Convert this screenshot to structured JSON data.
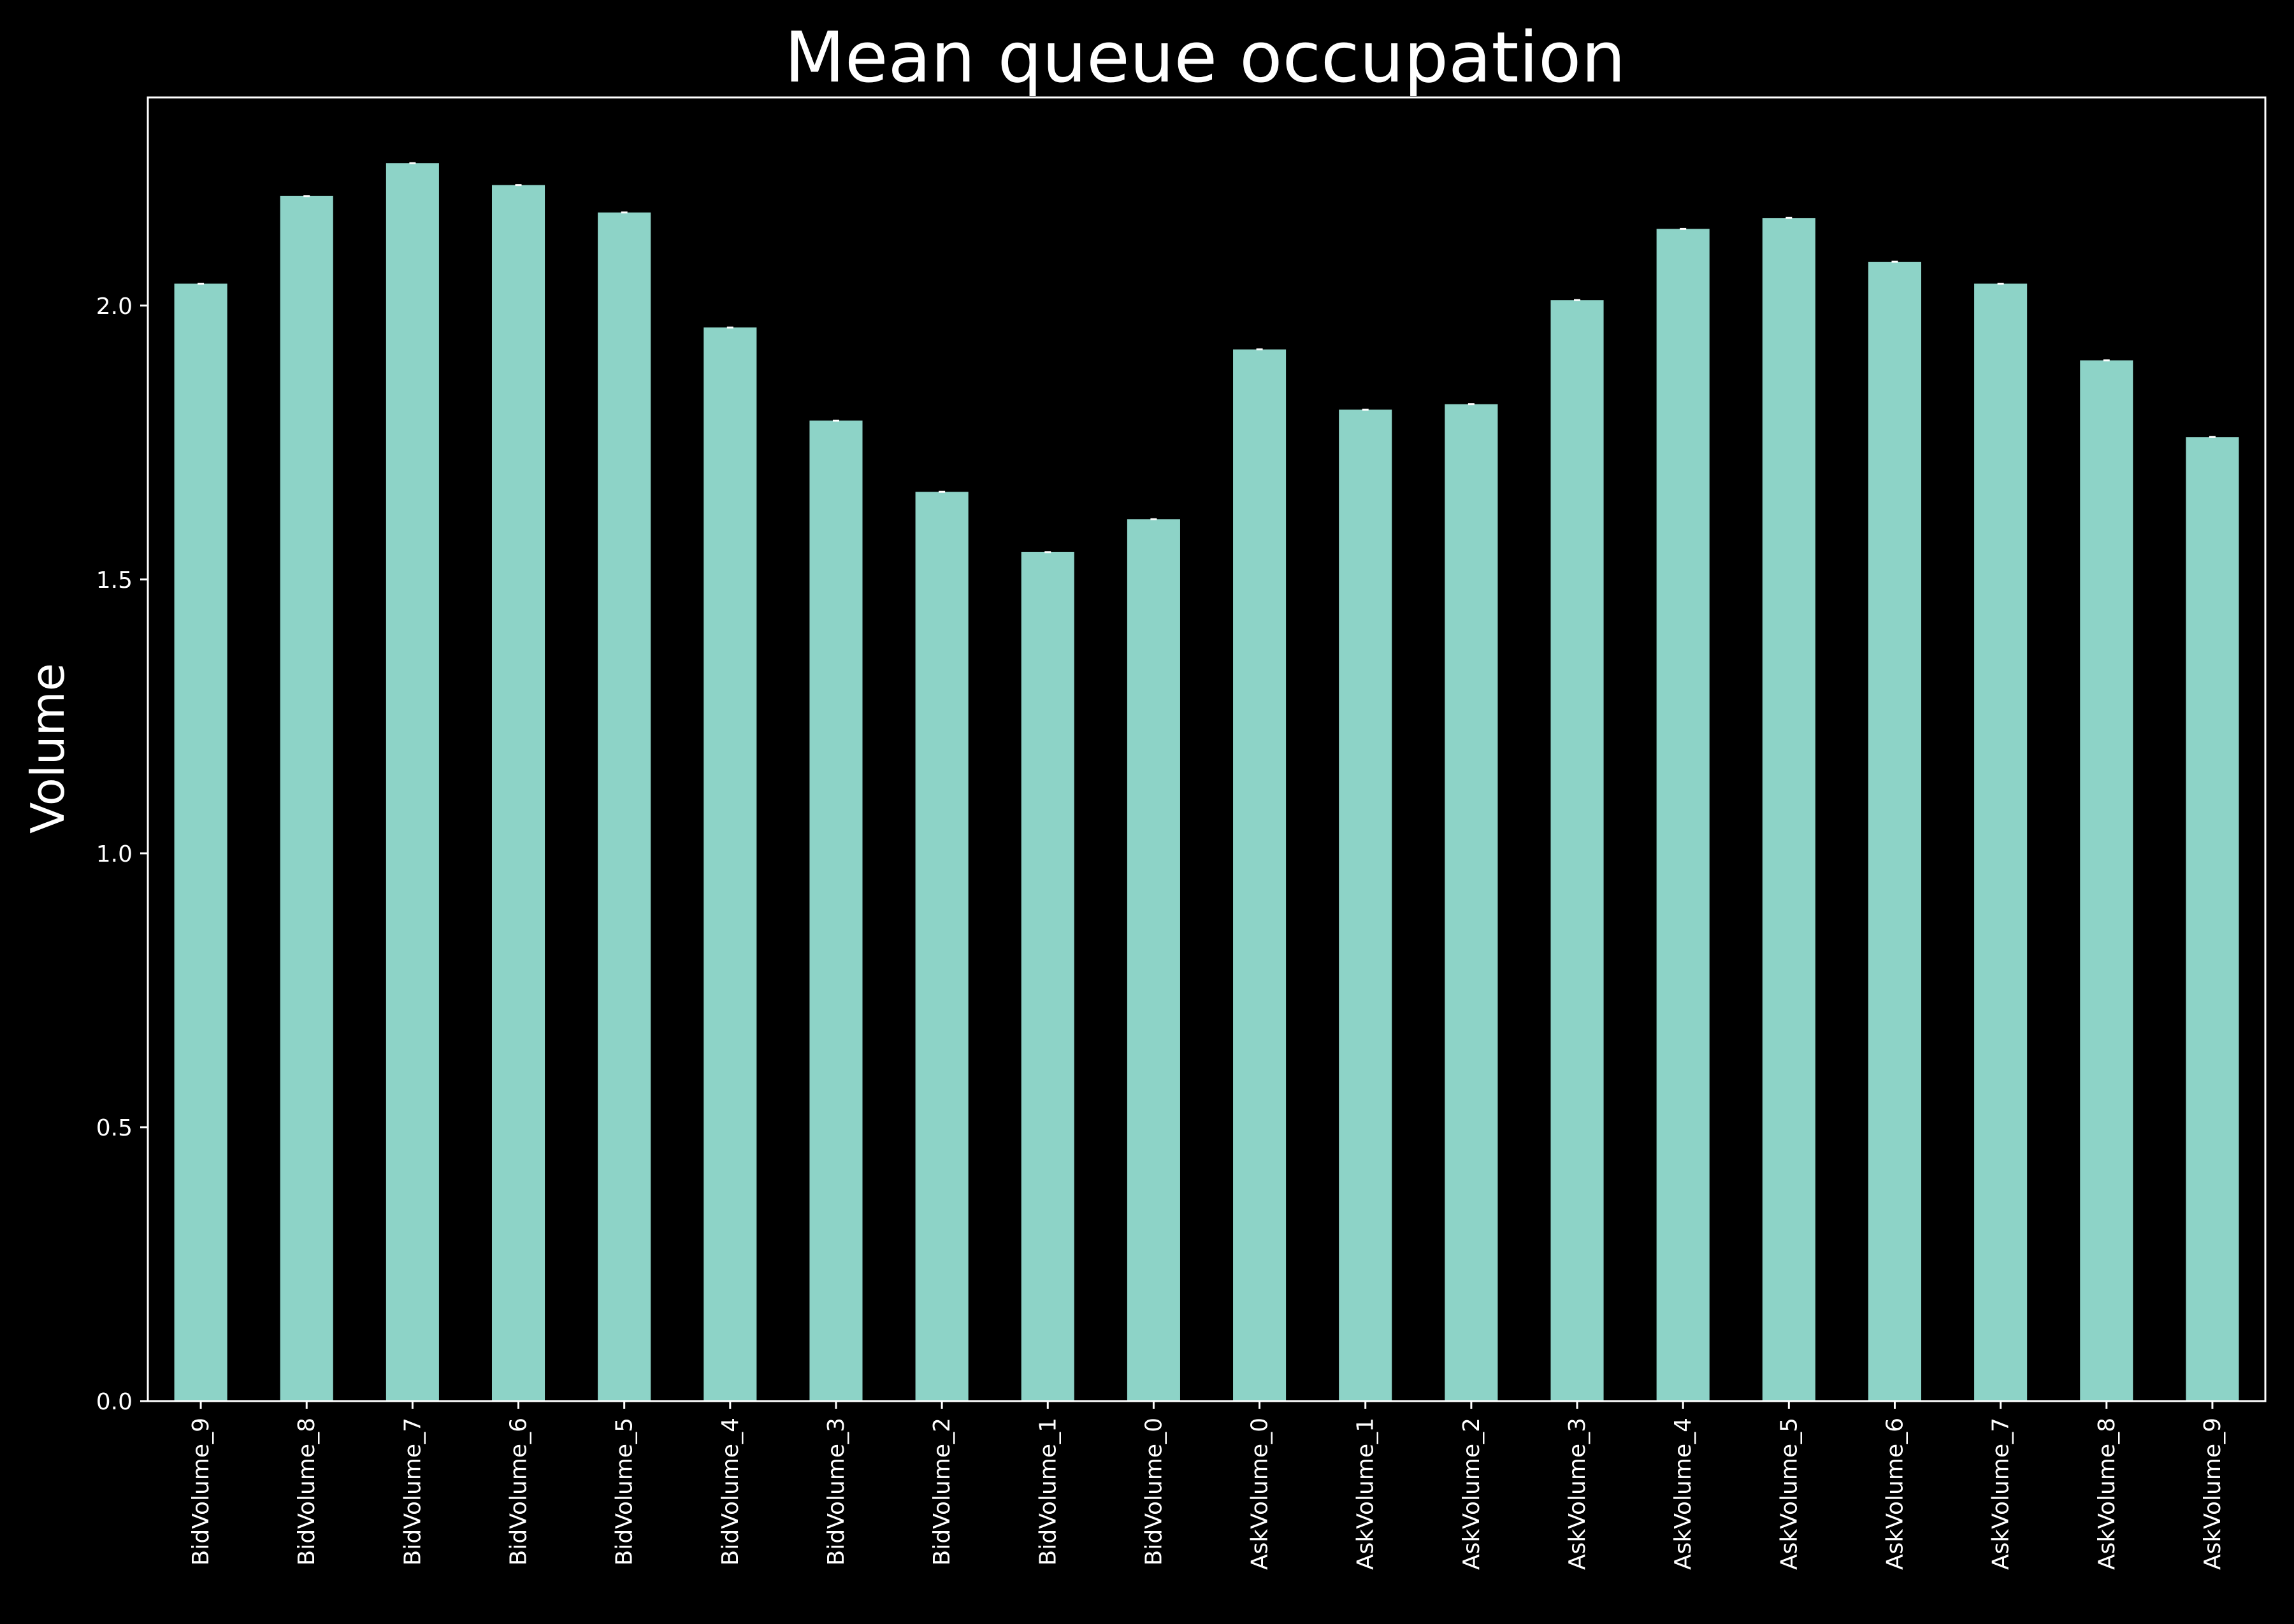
{
  "chart_data": {
    "type": "bar",
    "title": "Mean queue occupation",
    "xlabel": "",
    "ylabel": "Volume",
    "ylim": [
      0,
      2.38
    ],
    "yticks": [
      0.0,
      0.5,
      1.0,
      1.5,
      2.0
    ],
    "ytick_labels": [
      "0.0",
      "0.5",
      "1.0",
      "1.5",
      "2.0"
    ],
    "grid": false,
    "legend": "none",
    "error_bars": true,
    "categories": [
      "BidVolume_9",
      "BidVolume_8",
      "BidVolume_7",
      "BidVolume_6",
      "BidVolume_5",
      "BidVolume_4",
      "BidVolume_3",
      "BidVolume_2",
      "BidVolume_1",
      "BidVolume_0",
      "AskVolume_0",
      "AskVolume_1",
      "AskVolume_2",
      "AskVolume_3",
      "AskVolume_4",
      "AskVolume_5",
      "AskVolume_6",
      "AskVolume_7",
      "AskVolume_8",
      "AskVolume_9"
    ],
    "values": [
      2.04,
      2.2,
      2.26,
      2.22,
      2.17,
      1.96,
      1.79,
      1.66,
      1.55,
      1.61,
      1.92,
      1.81,
      1.82,
      2.01,
      2.14,
      2.16,
      2.08,
      2.04,
      1.9,
      1.76
    ],
    "colors": {
      "background": "#000000",
      "bar": "#8dd3c7",
      "axis": "#ffffff",
      "text": "#ffffff"
    }
  }
}
